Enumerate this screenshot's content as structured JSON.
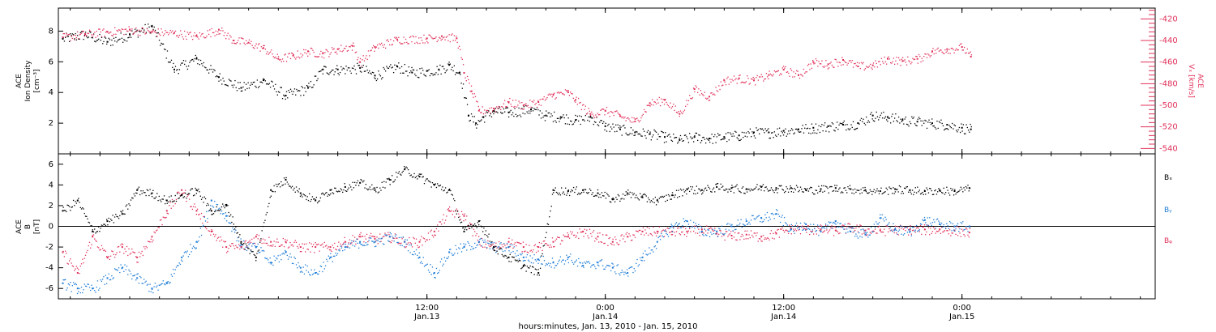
{
  "colors": {
    "density": "#000000",
    "velocity": "#e0305a",
    "bx": "#000000",
    "by": "#1a7ad6",
    "bz": "#e0305a",
    "axis": "#000000"
  },
  "xaxis": {
    "title": "hours:minutes, Jan. 13, 2010 - Jan. 15, 2010",
    "range_hours": [
      -12.8,
      61.0
    ],
    "ticks": [
      {
        "h": 12,
        "time": "12:00",
        "date": "Jan.13"
      },
      {
        "h": 24,
        "time": "0:00",
        "date": "Jan.14"
      },
      {
        "h": 36,
        "time": "12:00",
        "date": "Jan.14"
      },
      {
        "h": 48,
        "time": "0:00",
        "date": "Jan.15"
      }
    ]
  },
  "chart_data": [
    {
      "type": "scatter",
      "panel": "top",
      "left_axis": {
        "label_lines": [
          "ACE",
          "Ion Density",
          "[cm⁻³]"
        ],
        "ylim": [
          0,
          9.5
        ],
        "ticks": [
          2,
          4,
          6,
          8
        ]
      },
      "right_axis": {
        "label_lines": [
          "ACE",
          "Vₓ [km/s]"
        ],
        "ylim": [
          -545,
          -410
        ],
        "ticks": [
          -420,
          -440,
          -460,
          -480,
          -500,
          -520,
          -540
        ]
      },
      "series": [
        {
          "key": "density",
          "axis": "left",
          "x": [
            -12.5,
            -11,
            -9.5,
            -8,
            -6.5,
            -5,
            -3.5,
            -2,
            -0.5,
            1,
            2.5,
            4,
            5,
            6,
            7.5,
            8.5,
            10,
            11,
            12,
            12.8,
            13.5,
            14.2,
            14.8,
            15.3,
            15.8,
            16.5,
            17.5,
            19,
            20,
            21,
            22,
            23,
            24,
            25,
            26,
            27,
            28,
            29,
            30,
            31,
            32,
            33,
            34,
            35,
            36,
            37,
            38,
            39,
            40,
            41,
            42,
            43,
            44,
            45,
            46,
            47,
            48,
            48.6
          ],
          "y": [
            7.5,
            7.8,
            7.3,
            7.8,
            8.3,
            5.5,
            6.2,
            5,
            4.3,
            4.8,
            3.8,
            4.3,
            5.5,
            5.5,
            5.6,
            5.1,
            5.7,
            5.3,
            5.4,
            5.5,
            5.8,
            5.3,
            2.5,
            2,
            2.4,
            2.8,
            2.7,
            2.9,
            2.5,
            2.4,
            2.2,
            2.4,
            1.8,
            1.6,
            1.4,
            1.3,
            1.1,
            0.9,
            1.1,
            1,
            1.1,
            1.2,
            1.4,
            1.4,
            1.5,
            1.6,
            1.7,
            1.8,
            1.9,
            2,
            2.5,
            2.4,
            2.2,
            2.1,
            2,
            1.9,
            1.7,
            1.6
          ]
        },
        {
          "key": "velocity",
          "axis": "right",
          "x": [
            -12.5,
            -11,
            -9.5,
            -8,
            -6.5,
            -5,
            -3.5,
            -2,
            -1,
            0,
            1,
            2,
            3,
            4,
            5,
            6,
            7,
            7.5,
            8.5,
            10,
            12,
            13,
            14,
            14.5,
            15,
            15.5,
            16.5,
            17.5,
            18.5,
            19.5,
            20.5,
            21.5,
            22,
            23,
            24,
            25,
            26,
            27,
            28,
            29,
            30,
            31,
            32,
            33,
            34,
            35,
            36,
            37,
            38,
            39,
            40,
            41,
            42,
            43,
            44,
            45,
            46,
            47,
            48,
            48.6
          ],
          "y": [
            -437,
            -434,
            -432,
            -430,
            -432,
            -433,
            -436,
            -430,
            -440,
            -442,
            -447,
            -457,
            -454,
            -450,
            -452,
            -448,
            -445,
            -460,
            -446,
            -439,
            -438,
            -436,
            -438,
            -470,
            -487,
            -505,
            -503,
            -497,
            -500,
            -497,
            -490,
            -488,
            -495,
            -508,
            -505,
            -510,
            -515,
            -498,
            -495,
            -508,
            -485,
            -492,
            -477,
            -475,
            -477,
            -472,
            -467,
            -472,
            -460,
            -462,
            -458,
            -464,
            -463,
            -457,
            -459,
            -457,
            -450,
            -448,
            -446,
            -455
          ]
        }
      ]
    },
    {
      "type": "scatter",
      "panel": "bottom",
      "left_axis": {
        "label_lines": [
          "ACE",
          "B",
          "[nT]"
        ],
        "ylim": [
          -7,
          7
        ],
        "ticks": [
          -6,
          -4,
          -2,
          0,
          2,
          4,
          6
        ]
      },
      "series": [
        {
          "key": "bx",
          "name": "Bₓ",
          "x": [
            -12.5,
            -11.5,
            -10.5,
            -9.5,
            -8.5,
            -7.5,
            -6.5,
            -5.5,
            -4.5,
            -3.5,
            -2.5,
            -1.5,
            -0.5,
            0.5,
            1.5,
            2.5,
            3.5,
            4.5,
            5.5,
            6.5,
            7.5,
            8.5,
            9.5,
            10.5,
            11.5,
            12.5,
            13.5,
            14.5,
            15.5,
            16.5,
            17.5,
            18.5,
            19.5,
            20.5,
            21.5,
            22.5,
            23.5,
            24.5,
            25.5,
            26.5,
            27.5,
            28.5,
            29.5,
            30.5,
            31.5,
            32.5,
            33.5,
            34.5,
            35.5,
            36.5,
            37.5,
            38.5,
            39.5,
            40.5,
            41.5,
            42.5,
            43.5,
            44.5,
            45.5,
            46.5,
            47.5,
            48.5
          ],
          "y": [
            1.5,
            2.5,
            -0.5,
            0.5,
            1.2,
            3.5,
            3.2,
            2.5,
            3,
            3.5,
            1.5,
            2,
            -1.5,
            -3,
            3.5,
            4.5,
            3.2,
            2.5,
            3.5,
            3.8,
            4.2,
            3.5,
            4.5,
            5.5,
            4.8,
            4,
            3.5,
            -0.5,
            0.5,
            -2,
            -3,
            -3.8,
            -4.5,
            3.5,
            3.4,
            3.5,
            3.2,
            2.6,
            3.2,
            2.8,
            2.5,
            3,
            3.6,
            3.5,
            3.8,
            3.7,
            3.6,
            3.8,
            3.7,
            3.7,
            3.5,
            3.6,
            3.7,
            3.6,
            3.5,
            3.4,
            3.6,
            3.5,
            3.4,
            3.5,
            3.4,
            3.7
          ]
        },
        {
          "key": "by",
          "name": "Bᵧ",
          "x": [
            -12.5,
            -11.5,
            -10.5,
            -9.5,
            -8.5,
            -7.5,
            -6.5,
            -5.5,
            -4.5,
            -3.5,
            -2.5,
            -1.5,
            -0.5,
            0.5,
            1.5,
            2.5,
            3.5,
            4.5,
            5.5,
            6.5,
            7.5,
            8.5,
            9.5,
            10.5,
            11.5,
            12.5,
            13.5,
            14.5,
            15.5,
            16.5,
            17.5,
            18.5,
            19.5,
            20.5,
            21.5,
            22.5,
            23.5,
            24.5,
            25.5,
            26.5,
            27.5,
            28.5,
            29.5,
            30.5,
            31.5,
            32.5,
            33.5,
            34.5,
            35.5,
            36.5,
            37.5,
            38.5,
            39.5,
            40.5,
            41.5,
            42.5,
            43.5,
            44.5,
            45.5,
            46.5,
            47.5,
            48.5
          ],
          "y": [
            -5.5,
            -6,
            -6,
            -5,
            -4,
            -5,
            -6,
            -5.5,
            -3,
            -1.5,
            2.5,
            1,
            -1.8,
            -2,
            -3.5,
            -2.5,
            -4,
            -4.5,
            -3,
            -2,
            -1.5,
            -1.5,
            -1,
            -1.5,
            -3,
            -4.5,
            -2.5,
            -2,
            -1.5,
            -2,
            -2,
            -3,
            -3.2,
            -3.5,
            -3,
            -3.8,
            -3.5,
            -4,
            -4.5,
            -3,
            -1.5,
            0,
            0.5,
            -0.5,
            -0.5,
            0,
            0.5,
            0.8,
            1.2,
            -0.3,
            0.2,
            -0.5,
            0.5,
            -0.5,
            -0.8,
            0.8,
            -0.3,
            -0.5,
            0.6,
            0.2,
            0,
            0
          ]
        },
        {
          "key": "bz",
          "name": "Bᵩ",
          "x": [
            -12.5,
            -11.5,
            -10.5,
            -9.5,
            -8.5,
            -7.5,
            -6.5,
            -5.5,
            -4.5,
            -3.5,
            -2.5,
            -1.5,
            -0.5,
            0.5,
            1.5,
            2.5,
            3.5,
            4.5,
            5.5,
            6.5,
            7.5,
            8.5,
            9.5,
            10.5,
            11.5,
            12.5,
            13.5,
            14.5,
            15.5,
            16.5,
            17.5,
            18.5,
            19.5,
            20.5,
            21.5,
            22.5,
            23.5,
            24.5,
            25.5,
            26.5,
            27.5,
            28.5,
            29.5,
            30.5,
            31.5,
            32.5,
            33.5,
            34.5,
            35.5,
            36.5,
            37.5,
            38.5,
            39.5,
            40.5,
            41.5,
            42.5,
            43.5,
            44.5,
            45.5,
            46.5,
            47.5,
            48.5
          ],
          "y": [
            -2.5,
            -4.5,
            -1,
            -3,
            -2,
            -3,
            -1,
            1.5,
            3.5,
            1.5,
            -0.5,
            -2,
            -2,
            -1,
            -1.5,
            -1.5,
            -2,
            -2,
            -2,
            -1.5,
            -1,
            -1.2,
            -1,
            -1.5,
            -1.5,
            -0.5,
            1.5,
            1,
            -1.5,
            -2,
            -1.5,
            -2,
            -2,
            -1.5,
            -1,
            -0.5,
            -1,
            -1.5,
            -1,
            -0.5,
            -0.5,
            -0.5,
            -0.5,
            -0.3,
            -0.7,
            -0.9,
            -0.8,
            -1,
            -0.7,
            -0.2,
            -0.3,
            -0.3,
            -0.4,
            -0.1,
            -0.4,
            -0.4,
            -0.3,
            -0.3,
            -0.3,
            -0.3,
            -0.4,
            -0.6
          ]
        }
      ]
    }
  ]
}
